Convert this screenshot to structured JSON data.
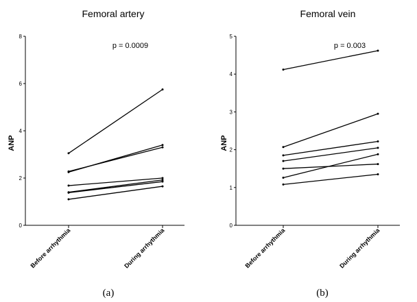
{
  "chart_data": [
    {
      "type": "line",
      "title": "Femoral artery",
      "ylabel": "ANP",
      "annotation": "p = 0.0009",
      "categories": [
        "Before arrhythmia",
        "During arrhythmia"
      ],
      "ylim": [
        0,
        8
      ],
      "yticks": [
        "0",
        "2",
        "4",
        "6",
        "8"
      ],
      "caption": "(a)",
      "series": [
        {
          "values": [
            3.05,
            5.75
          ]
        },
        {
          "values": [
            2.25,
            3.4
          ]
        },
        {
          "values": [
            2.28,
            3.3
          ]
        },
        {
          "values": [
            1.68,
            2.0
          ]
        },
        {
          "values": [
            1.4,
            1.92
          ]
        },
        {
          "values": [
            1.38,
            1.85
          ]
        },
        {
          "values": [
            1.1,
            1.65
          ]
        }
      ]
    },
    {
      "type": "line",
      "title": "Femoral vein",
      "ylabel": "ANP",
      "annotation": "p = 0.003",
      "categories": [
        "Before arrhythmia",
        "During arrhythmia"
      ],
      "ylim": [
        0,
        5
      ],
      "yticks": [
        "0",
        "1",
        "2",
        "3",
        "4",
        "5"
      ],
      "caption": "(b)",
      "series": [
        {
          "values": [
            4.12,
            4.62
          ]
        },
        {
          "values": [
            2.07,
            2.95
          ]
        },
        {
          "values": [
            1.85,
            2.22
          ]
        },
        {
          "values": [
            1.7,
            2.05
          ]
        },
        {
          "values": [
            1.5,
            1.62
          ]
        },
        {
          "values": [
            1.26,
            1.88
          ]
        },
        {
          "values": [
            1.08,
            1.35
          ]
        }
      ]
    }
  ]
}
